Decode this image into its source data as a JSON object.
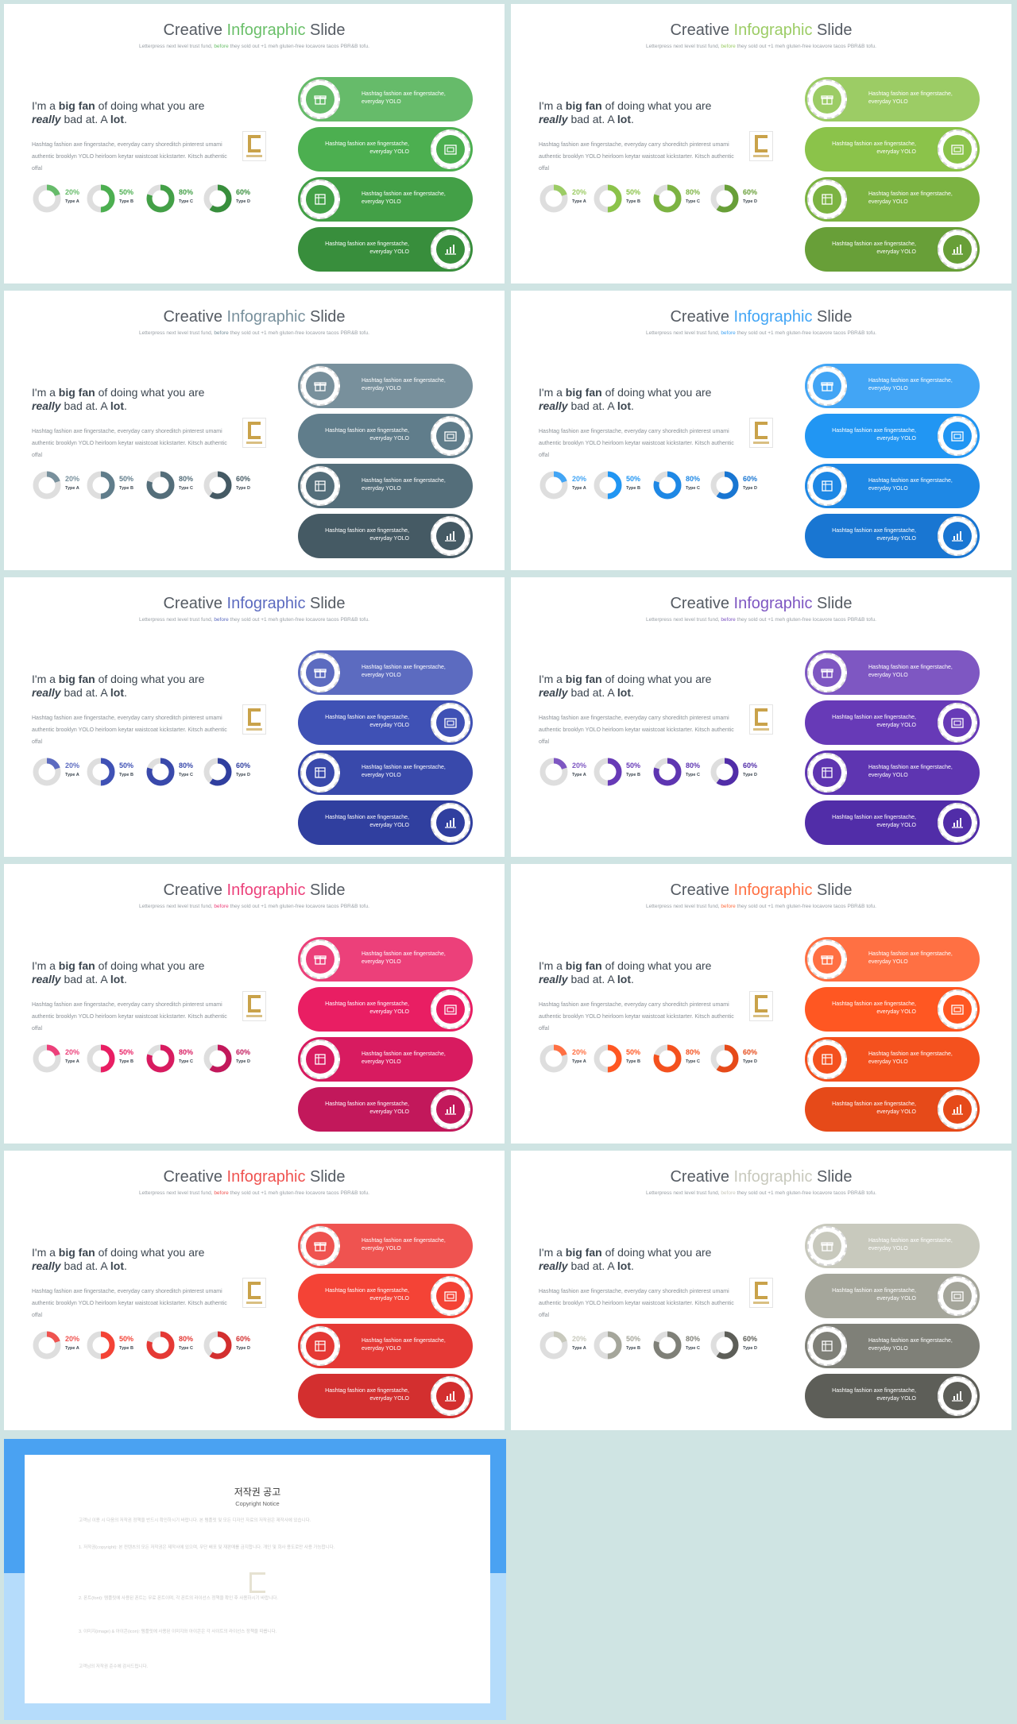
{
  "slide": {
    "title_pre": "Creative ",
    "title_hl": "Infographic",
    "title_post": " Slide",
    "sub_pre": "Letterpress next level trust fund, ",
    "sub_hl": "before",
    "sub_post": " they sold out +1 meh gluten-free locavore tacos PBR&B tofu.",
    "head_a": "I'm a ",
    "head_b": "big fan",
    "head_c": " of doing what you are",
    "head_d": "really",
    "head_e": " bad at. A ",
    "head_f": "lot",
    "head_g": ".",
    "body": "Hashtag fashion axe fingerstache, everyday carry shoreditch pinterest umami authentic brooklyn YOLO heirloom keytar waistcoat kickstarter. Kitsch authentic offal",
    "donuts": [
      {
        "value": 20,
        "label": "20%",
        "type": "Type A"
      },
      {
        "value": 50,
        "label": "50%",
        "type": "Type B"
      },
      {
        "value": 80,
        "label": "80%",
        "type": "Type C"
      },
      {
        "value": 60,
        "label": "60%",
        "type": "Type D"
      }
    ],
    "pills": [
      {
        "text": "Hashtag fashion axe fingerstache, everyday YOLO",
        "icon": "gift-icon"
      },
      {
        "text": "Hashtag fashion axe fingerstache, everyday YOLO",
        "icon": "picture-icon"
      },
      {
        "text": "Hashtag fashion axe fingerstache, everyday YOLO",
        "icon": "box-icon"
      },
      {
        "text": "Hashtag fashion axe fingerstache, everyday YOLO",
        "icon": "bar-chart-icon"
      }
    ]
  },
  "themes": [
    {
      "name": "green",
      "accent": "#6abf69",
      "pills": [
        "#66bb6a",
        "#4caf50",
        "#43a047",
        "#388e3c"
      ]
    },
    {
      "name": "lime",
      "accent": "#9ccc65",
      "pills": [
        "#9ccc65",
        "#8bc34a",
        "#7cb342",
        "#689f38"
      ]
    },
    {
      "name": "blue-grey",
      "accent": "#78909c",
      "pills": [
        "#78909c",
        "#607d8b",
        "#546e7a",
        "#455a64"
      ]
    },
    {
      "name": "blue",
      "accent": "#42a5f5",
      "pills": [
        "#42a5f5",
        "#2196f3",
        "#1e88e5",
        "#1976d2"
      ]
    },
    {
      "name": "indigo",
      "accent": "#5c6bc0",
      "pills": [
        "#5c6bc0",
        "#3f51b5",
        "#3949ab",
        "#303f9f"
      ]
    },
    {
      "name": "purple",
      "accent": "#7e57c2",
      "pills": [
        "#7e57c2",
        "#673ab7",
        "#5e35b1",
        "#512da8"
      ]
    },
    {
      "name": "pink",
      "accent": "#ec407a",
      "pills": [
        "#ec407a",
        "#e91e63",
        "#d81b60",
        "#c2185b"
      ]
    },
    {
      "name": "orange",
      "accent": "#ff7043",
      "pills": [
        "#ff7043",
        "#ff5722",
        "#f4511e",
        "#e64a19"
      ]
    },
    {
      "name": "red",
      "accent": "#ef5350",
      "pills": [
        "#ef5350",
        "#f44336",
        "#e53935",
        "#d32f2f"
      ]
    },
    {
      "name": "grey",
      "accent": "#c8c9bd",
      "pills": [
        "#c8c9bd",
        "#a5a69b",
        "#7f8078",
        "#5d5e58"
      ]
    }
  ],
  "copyright": {
    "title": "저작권 공고",
    "subtitle": "Copyright Notice",
    "paras": [
      "고객님 이용 시 다음의 저작권 정책을 반드시 확인하시기 바랍니다. 본 템플릿 및 모든 디자인 자료의 저작권은 제작사에 있습니다.",
      "1. 저작권(copyright): 본 컨텐츠의 모든 저작권은 제작사에 있으며, 무단 배포 및 재판매를 금지합니다. 개인 및 회사 용도로만 사용 가능합니다.",
      "2. 폰트(font): 템플릿에 사용된 폰트는 무료 폰트이며, 각 폰트의 라이선스 정책을 확인 후 사용하시기 바랍니다.",
      "3. 이미지(image) & 아이콘(icon): 템플릿에 사용된 이미지와 아이콘은 각 사이트의 라이선스 정책을 따릅니다.",
      "고객님의 저작권 준수에 감사드립니다."
    ]
  }
}
